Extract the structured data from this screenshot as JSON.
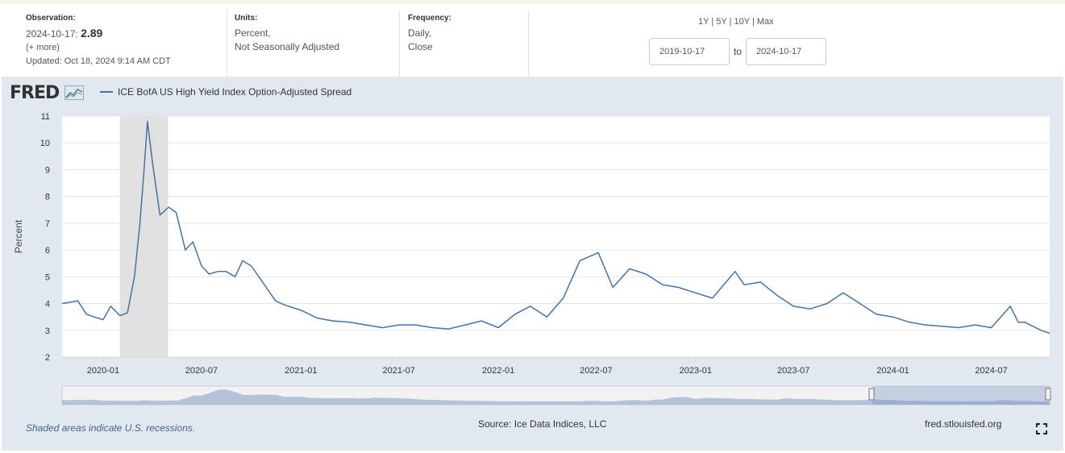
{
  "observation": {
    "label": "Observation:",
    "date": "2024-10-17:",
    "value": "2.89",
    "more": "(+ more)",
    "updated": "Updated: Oct 18, 2024 9:14 AM CDT"
  },
  "units": {
    "label": "Units:",
    "line1": "Percent,",
    "line2": "Not Seasonally Adjusted"
  },
  "frequency": {
    "label": "Frequency:",
    "line1": "Daily,",
    "line2": "Close"
  },
  "range_buttons": {
    "y1": "1Y",
    "y5": "5Y",
    "y10": "10Y",
    "max": "Max",
    "sep": "|"
  },
  "date_range": {
    "start": "2019-10-17",
    "to": "to",
    "end": "2024-10-17"
  },
  "logo": "FRED",
  "footer": {
    "recession_note": "Shaded areas indicate U.S. recessions.",
    "source": "Source: Ice Data Indices, LLC",
    "site": "fred.stlouisfed.org"
  },
  "colors": {
    "series": "#4572a7",
    "recession": "#e1e1e1",
    "panel": "#e1e9f0",
    "navigator_fill": "#8ba3c7"
  },
  "chart_data": {
    "type": "line",
    "title": "",
    "xlabel": "",
    "ylabel": "Percent",
    "ylim": [
      2,
      11
    ],
    "yticks": [
      2,
      3,
      4,
      5,
      6,
      7,
      8,
      9,
      10,
      11
    ],
    "xlim": [
      "2019-10-17",
      "2024-10-17"
    ],
    "xticks": [
      "2020-01",
      "2020-07",
      "2021-01",
      "2021-07",
      "2022-01",
      "2022-07",
      "2023-01",
      "2023-07",
      "2024-01",
      "2024-07"
    ],
    "grid": true,
    "legend": "top-left",
    "recessions": [
      [
        "2020-02-01",
        "2020-04-30"
      ]
    ],
    "series": [
      {
        "name": "ICE BofA US High Yield Index Option-Adjusted Spread",
        "x": [
          "2019-10-17",
          "2019-11-01",
          "2019-11-15",
          "2019-12-01",
          "2019-12-15",
          "2020-01-01",
          "2020-01-15",
          "2020-02-01",
          "2020-02-15",
          "2020-02-28",
          "2020-03-09",
          "2020-03-16",
          "2020-03-23",
          "2020-04-01",
          "2020-04-15",
          "2020-05-01",
          "2020-05-15",
          "2020-06-01",
          "2020-06-15",
          "2020-07-01",
          "2020-07-15",
          "2020-08-01",
          "2020-08-15",
          "2020-09-01",
          "2020-09-15",
          "2020-10-01",
          "2020-10-15",
          "2020-11-01",
          "2020-11-15",
          "2020-12-01",
          "2021-01-01",
          "2021-02-01",
          "2021-03-01",
          "2021-04-01",
          "2021-05-01",
          "2021-06-01",
          "2021-07-01",
          "2021-08-01",
          "2021-09-01",
          "2021-10-01",
          "2021-11-01",
          "2021-12-01",
          "2022-01-01",
          "2022-02-01",
          "2022-03-01",
          "2022-04-01",
          "2022-05-01",
          "2022-06-01",
          "2022-07-05",
          "2022-08-01",
          "2022-09-01",
          "2022-10-01",
          "2022-11-01",
          "2022-12-01",
          "2023-01-01",
          "2023-02-01",
          "2023-03-15",
          "2023-04-01",
          "2023-05-01",
          "2023-06-01",
          "2023-07-01",
          "2023-08-01",
          "2023-09-01",
          "2023-10-01",
          "2023-11-01",
          "2023-12-01",
          "2024-01-01",
          "2024-02-01",
          "2024-03-01",
          "2024-04-01",
          "2024-05-01",
          "2024-06-01",
          "2024-07-01",
          "2024-08-05",
          "2024-08-20",
          "2024-09-01",
          "2024-10-01",
          "2024-10-17"
        ],
        "values": [
          4.0,
          4.05,
          4.1,
          3.6,
          3.5,
          3.4,
          3.9,
          3.55,
          3.65,
          5.0,
          7.0,
          8.8,
          10.8,
          9.3,
          7.3,
          7.6,
          7.4,
          6.0,
          6.3,
          5.4,
          5.1,
          5.2,
          5.2,
          5.0,
          5.6,
          5.4,
          5.0,
          4.5,
          4.1,
          3.95,
          3.75,
          3.45,
          3.35,
          3.3,
          3.2,
          3.1,
          3.2,
          3.2,
          3.1,
          3.05,
          3.2,
          3.35,
          3.1,
          3.6,
          3.9,
          3.5,
          4.2,
          5.6,
          5.9,
          4.6,
          5.3,
          5.1,
          4.7,
          4.6,
          4.4,
          4.2,
          5.2,
          4.7,
          4.8,
          4.3,
          3.9,
          3.8,
          4.0,
          4.4,
          4.0,
          3.6,
          3.5,
          3.3,
          3.2,
          3.15,
          3.1,
          3.2,
          3.1,
          3.9,
          3.3,
          3.3,
          3.0,
          2.89
        ]
      }
    ]
  }
}
